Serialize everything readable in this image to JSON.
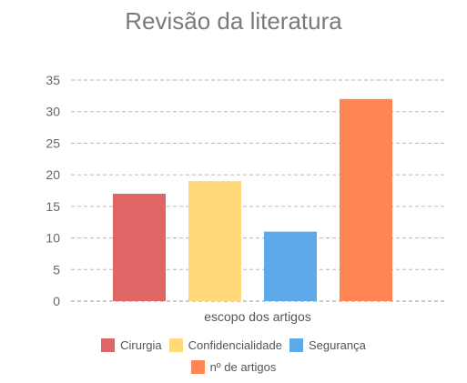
{
  "chart_data": {
    "type": "bar",
    "title": "Revisão da literatura",
    "xlabel": "escopo dos artigos",
    "ylabel": "",
    "categories": [
      "escopo dos artigos"
    ],
    "series": [
      {
        "name": "Cirurgia",
        "values": [
          17
        ],
        "color": "#e06666"
      },
      {
        "name": "Confidencialidade",
        "values": [
          19
        ],
        "color": "#ffd97a"
      },
      {
        "name": "Segurança",
        "values": [
          11
        ],
        "color": "#5da9e9"
      },
      {
        "name": "nº de artigos",
        "values": [
          32
        ],
        "color": "#ff8552"
      }
    ],
    "ylim": [
      0,
      35
    ],
    "yticks": [
      "0",
      "5",
      "10",
      "15",
      "20",
      "25",
      "30",
      "35"
    ],
    "grid": true,
    "legend": "bottom"
  }
}
